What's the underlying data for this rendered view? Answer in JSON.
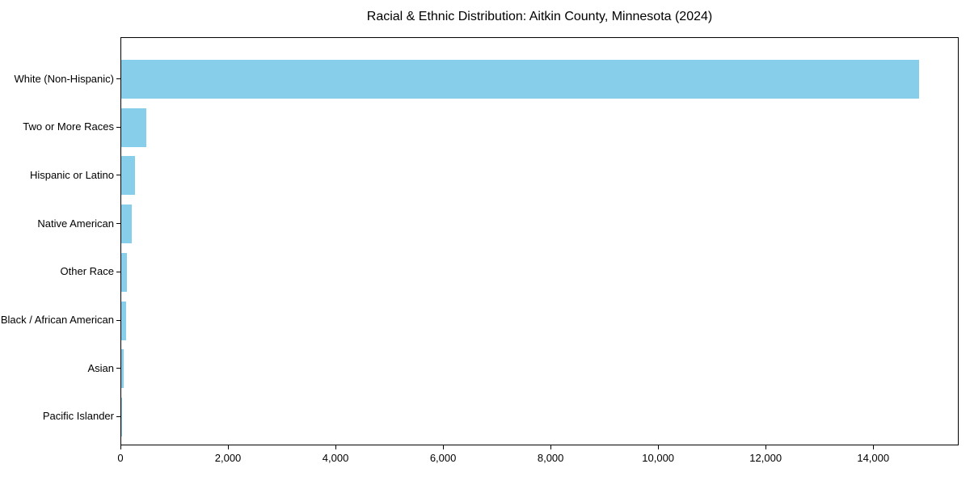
{
  "chart_data": {
    "type": "bar",
    "orientation": "horizontal",
    "title": "Racial & Ethnic Distribution: Aitkin County, Minnesota (2024)",
    "categories": [
      "White (Non-Hispanic)",
      "Two or More Races",
      "Hispanic or Latino",
      "Native American",
      "Other Race",
      "Black / African American",
      "Asian",
      "Pacific Islander"
    ],
    "values": [
      14840,
      465,
      250,
      200,
      105,
      95,
      40,
      5
    ],
    "bar_color": "#87CEEB",
    "xlabel": "",
    "ylabel": "",
    "xlim": [
      0,
      15560
    ],
    "x_ticks": [
      0,
      2000,
      4000,
      6000,
      8000,
      10000,
      12000,
      14000
    ],
    "x_tick_labels": [
      "0",
      "2,000",
      "4,000",
      "6,000",
      "8,000",
      "10,000",
      "12,000",
      "14,000"
    ],
    "grid": false,
    "legend": false,
    "background_color": "#ffffff",
    "text_color": "#000000"
  }
}
